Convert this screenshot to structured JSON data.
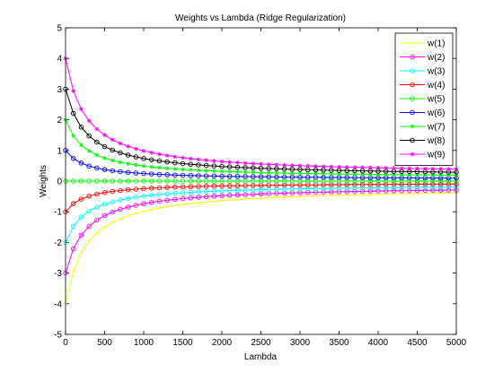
{
  "chart_data": {
    "type": "line",
    "title": "Weights vs Lambda (Ridge Regularization)",
    "xlabel": "Lambda",
    "ylabel": "Weights",
    "xlim": [
      0,
      5000
    ],
    "ylim": [
      -5,
      5
    ],
    "xticks": [
      0,
      500,
      1000,
      1500,
      2000,
      2500,
      3000,
      3500,
      4000,
      4500,
      5000
    ],
    "xtick_labels": [
      "0",
      "500",
      "1000",
      "1500",
      "2000",
      "2500",
      "3000",
      "3500",
      "4000",
      "4500",
      "5000"
    ],
    "yticks": [
      -5,
      -4,
      -3,
      -2,
      -1,
      0,
      1,
      2,
      3,
      4,
      5
    ],
    "ytick_labels": [
      "-5",
      "-4",
      "-3",
      "-2",
      "-1",
      "0",
      "1",
      "2",
      "3",
      "4",
      "5"
    ],
    "grid": false,
    "legend_position": "top-right",
    "x_sampling": {
      "start": 0,
      "end": 5000,
      "step": 100
    },
    "series": [
      {
        "name": "w(1)",
        "color": "#ffff00",
        "marker": "point",
        "start_value": -4.0
      },
      {
        "name": "w(2)",
        "color": "#ff00ff",
        "marker": "circle",
        "start_value": -3.0
      },
      {
        "name": "w(3)",
        "color": "#00ffff",
        "marker": "circle",
        "start_value": -2.0
      },
      {
        "name": "w(4)",
        "color": "#ff0000",
        "marker": "circle",
        "start_value": -1.0
      },
      {
        "name": "w(5)",
        "color": "#00ff00",
        "marker": "circle",
        "start_value": 0.0
      },
      {
        "name": "w(6)",
        "color": "#0000ff",
        "marker": "circle",
        "start_value": 1.0
      },
      {
        "name": "w(7)",
        "color": "#00ff00",
        "marker": "star",
        "start_value": 2.0
      },
      {
        "name": "w(8)",
        "color": "#000000",
        "marker": "circle",
        "start_value": 3.0
      },
      {
        "name": "w(9)",
        "color": "#ff00ff",
        "marker": "star",
        "start_value": 4.0
      }
    ]
  }
}
